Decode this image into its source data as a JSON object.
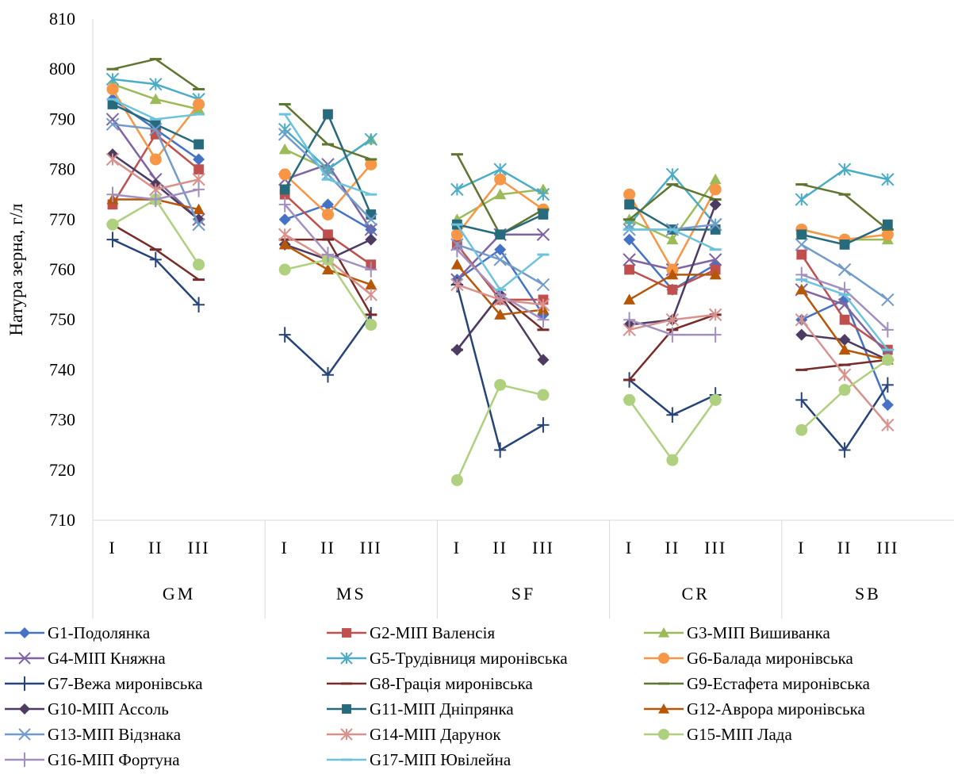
{
  "chart_data": {
    "type": "line",
    "title": "",
    "xlabel": "",
    "ylabel": "Натура зерна, г/л",
    "ylim": [
      710,
      810
    ],
    "yticks": [
      710,
      720,
      730,
      740,
      750,
      760,
      770,
      780,
      790,
      800,
      810
    ],
    "grid": false,
    "legend_position": "bottom",
    "groups": [
      "GM",
      "MS",
      "SF",
      "CR",
      "SB"
    ],
    "categories": [
      "I",
      "II",
      "III"
    ],
    "series": [
      {
        "name": "G1-Подолянка",
        "color": "#4472C4",
        "marker": "diamond",
        "values": [
          [
            794,
            788,
            782
          ],
          [
            770,
            773,
            768
          ],
          [
            758,
            764,
            751
          ],
          [
            766,
            756,
            761
          ],
          [
            750,
            754,
            733
          ]
        ]
      },
      {
        "name": "G2-МІП Валенсія",
        "color": "#C0504D",
        "marker": "square",
        "values": [
          [
            773,
            787,
            780
          ],
          [
            775,
            767,
            761
          ],
          [
            765,
            754,
            754
          ],
          [
            760,
            756,
            760
          ],
          [
            763,
            750,
            744
          ]
        ]
      },
      {
        "name": "G3-МІП Вишиванка",
        "color": "#9BBB59",
        "marker": "triangle",
        "values": [
          [
            797,
            794,
            792
          ],
          [
            784,
            780,
            786
          ],
          [
            770,
            775,
            776
          ],
          [
            770,
            766,
            778
          ],
          [
            768,
            766,
            766
          ]
        ]
      },
      {
        "name": "G4-МІП Княжна",
        "color": "#8064A2",
        "marker": "x",
        "values": [
          [
            790,
            778,
            770
          ],
          [
            778,
            781,
            768
          ],
          [
            758,
            767,
            767
          ],
          [
            762,
            760,
            762
          ],
          [
            756,
            753,
            743
          ]
        ]
      },
      {
        "name": "G5-Трудівниця миронівська",
        "color": "#4BACC6",
        "marker": "asterisk",
        "values": [
          [
            798,
            797,
            794
          ],
          [
            788,
            780,
            786
          ],
          [
            776,
            780,
            775
          ],
          [
            769,
            779,
            769
          ],
          [
            774,
            780,
            778
          ]
        ]
      },
      {
        "name": "G6-Балада миронівська",
        "color": "#F79646",
        "marker": "circle",
        "values": [
          [
            796,
            782,
            793
          ],
          [
            779,
            771,
            781
          ],
          [
            767,
            778,
            772
          ],
          [
            775,
            760,
            776
          ],
          [
            768,
            766,
            767
          ]
        ]
      },
      {
        "name": "G7-Вежа миронівська",
        "color": "#264478",
        "marker": "plus",
        "values": [
          [
            766,
            762,
            753
          ],
          [
            747,
            739,
            751
          ],
          [
            757,
            724,
            729
          ],
          [
            738,
            731,
            735
          ],
          [
            734,
            724,
            737
          ]
        ]
      },
      {
        "name": "G8-Грація миронівська",
        "color": "#772C2A",
        "marker": "dash",
        "values": [
          [
            769,
            764,
            758
          ],
          [
            766,
            766,
            751
          ],
          [
            744,
            755,
            748
          ],
          [
            738,
            748,
            751
          ],
          [
            740,
            741,
            742
          ]
        ]
      },
      {
        "name": "G9-Естафета миронівська",
        "color": "#5F7530",
        "marker": "dash",
        "values": [
          [
            800,
            802,
            796
          ],
          [
            793,
            785,
            782
          ],
          [
            783,
            767,
            772
          ],
          [
            770,
            777,
            774
          ],
          [
            777,
            775,
            768
          ]
        ]
      },
      {
        "name": "G10-МІП Ассоль",
        "color": "#4D3B62",
        "marker": "diamond",
        "values": [
          [
            783,
            777,
            770
          ],
          [
            765,
            762,
            766
          ],
          [
            744,
            755,
            742
          ],
          [
            749,
            750,
            773
          ],
          [
            747,
            746,
            742
          ]
        ]
      },
      {
        "name": "G11-МІП Дніпрянка",
        "color": "#276A7C",
        "marker": "square",
        "values": [
          [
            793,
            789,
            785
          ],
          [
            776,
            791,
            771
          ],
          [
            769,
            767,
            771
          ],
          [
            773,
            768,
            768
          ],
          [
            767,
            765,
            769
          ]
        ]
      },
      {
        "name": "G12-Аврора миронівська",
        "color": "#B65708",
        "marker": "triangle",
        "values": [
          [
            774,
            774,
            772
          ],
          [
            765,
            760,
            757
          ],
          [
            761,
            751,
            752
          ],
          [
            754,
            759,
            759
          ],
          [
            756,
            744,
            742
          ]
        ]
      },
      {
        "name": "G13-МІП Відзнака",
        "color": "#729ACA",
        "marker": "x",
        "values": [
          [
            789,
            788,
            769
          ],
          [
            787,
            779,
            770
          ],
          [
            765,
            762,
            757
          ],
          [
            768,
            768,
            769
          ],
          [
            765,
            760,
            754
          ]
        ]
      },
      {
        "name": "G14-МІП Дарунок",
        "color": "#D9918C",
        "marker": "asterisk",
        "values": [
          [
            782,
            776,
            778
          ],
          [
            767,
            762,
            755
          ],
          [
            757,
            754,
            753
          ],
          [
            748,
            750,
            751
          ],
          [
            750,
            739,
            729
          ]
        ]
      },
      {
        "name": "G15-МІП Лада",
        "color": "#AFD07E",
        "marker": "circle",
        "values": [
          [
            769,
            774,
            761
          ],
          [
            760,
            762,
            749
          ],
          [
            718,
            737,
            735
          ],
          [
            734,
            722,
            734
          ],
          [
            728,
            736,
            742
          ]
        ]
      },
      {
        "name": "G16-МІП Фортуна",
        "color": "#A28FBF",
        "marker": "plus",
        "values": [
          [
            775,
            774,
            776
          ],
          [
            773,
            763,
            760
          ],
          [
            764,
            755,
            750
          ],
          [
            750,
            747,
            747
          ],
          [
            759,
            756,
            748
          ]
        ]
      },
      {
        "name": "G17-МІП Ювілейна",
        "color": "#6CC3DB",
        "marker": "dash",
        "values": [
          [
            794,
            790,
            791
          ],
          [
            791,
            778,
            775
          ],
          [
            769,
            756,
            763
          ],
          [
            768,
            768,
            764
          ],
          [
            758,
            755,
            744
          ]
        ]
      }
    ]
  }
}
